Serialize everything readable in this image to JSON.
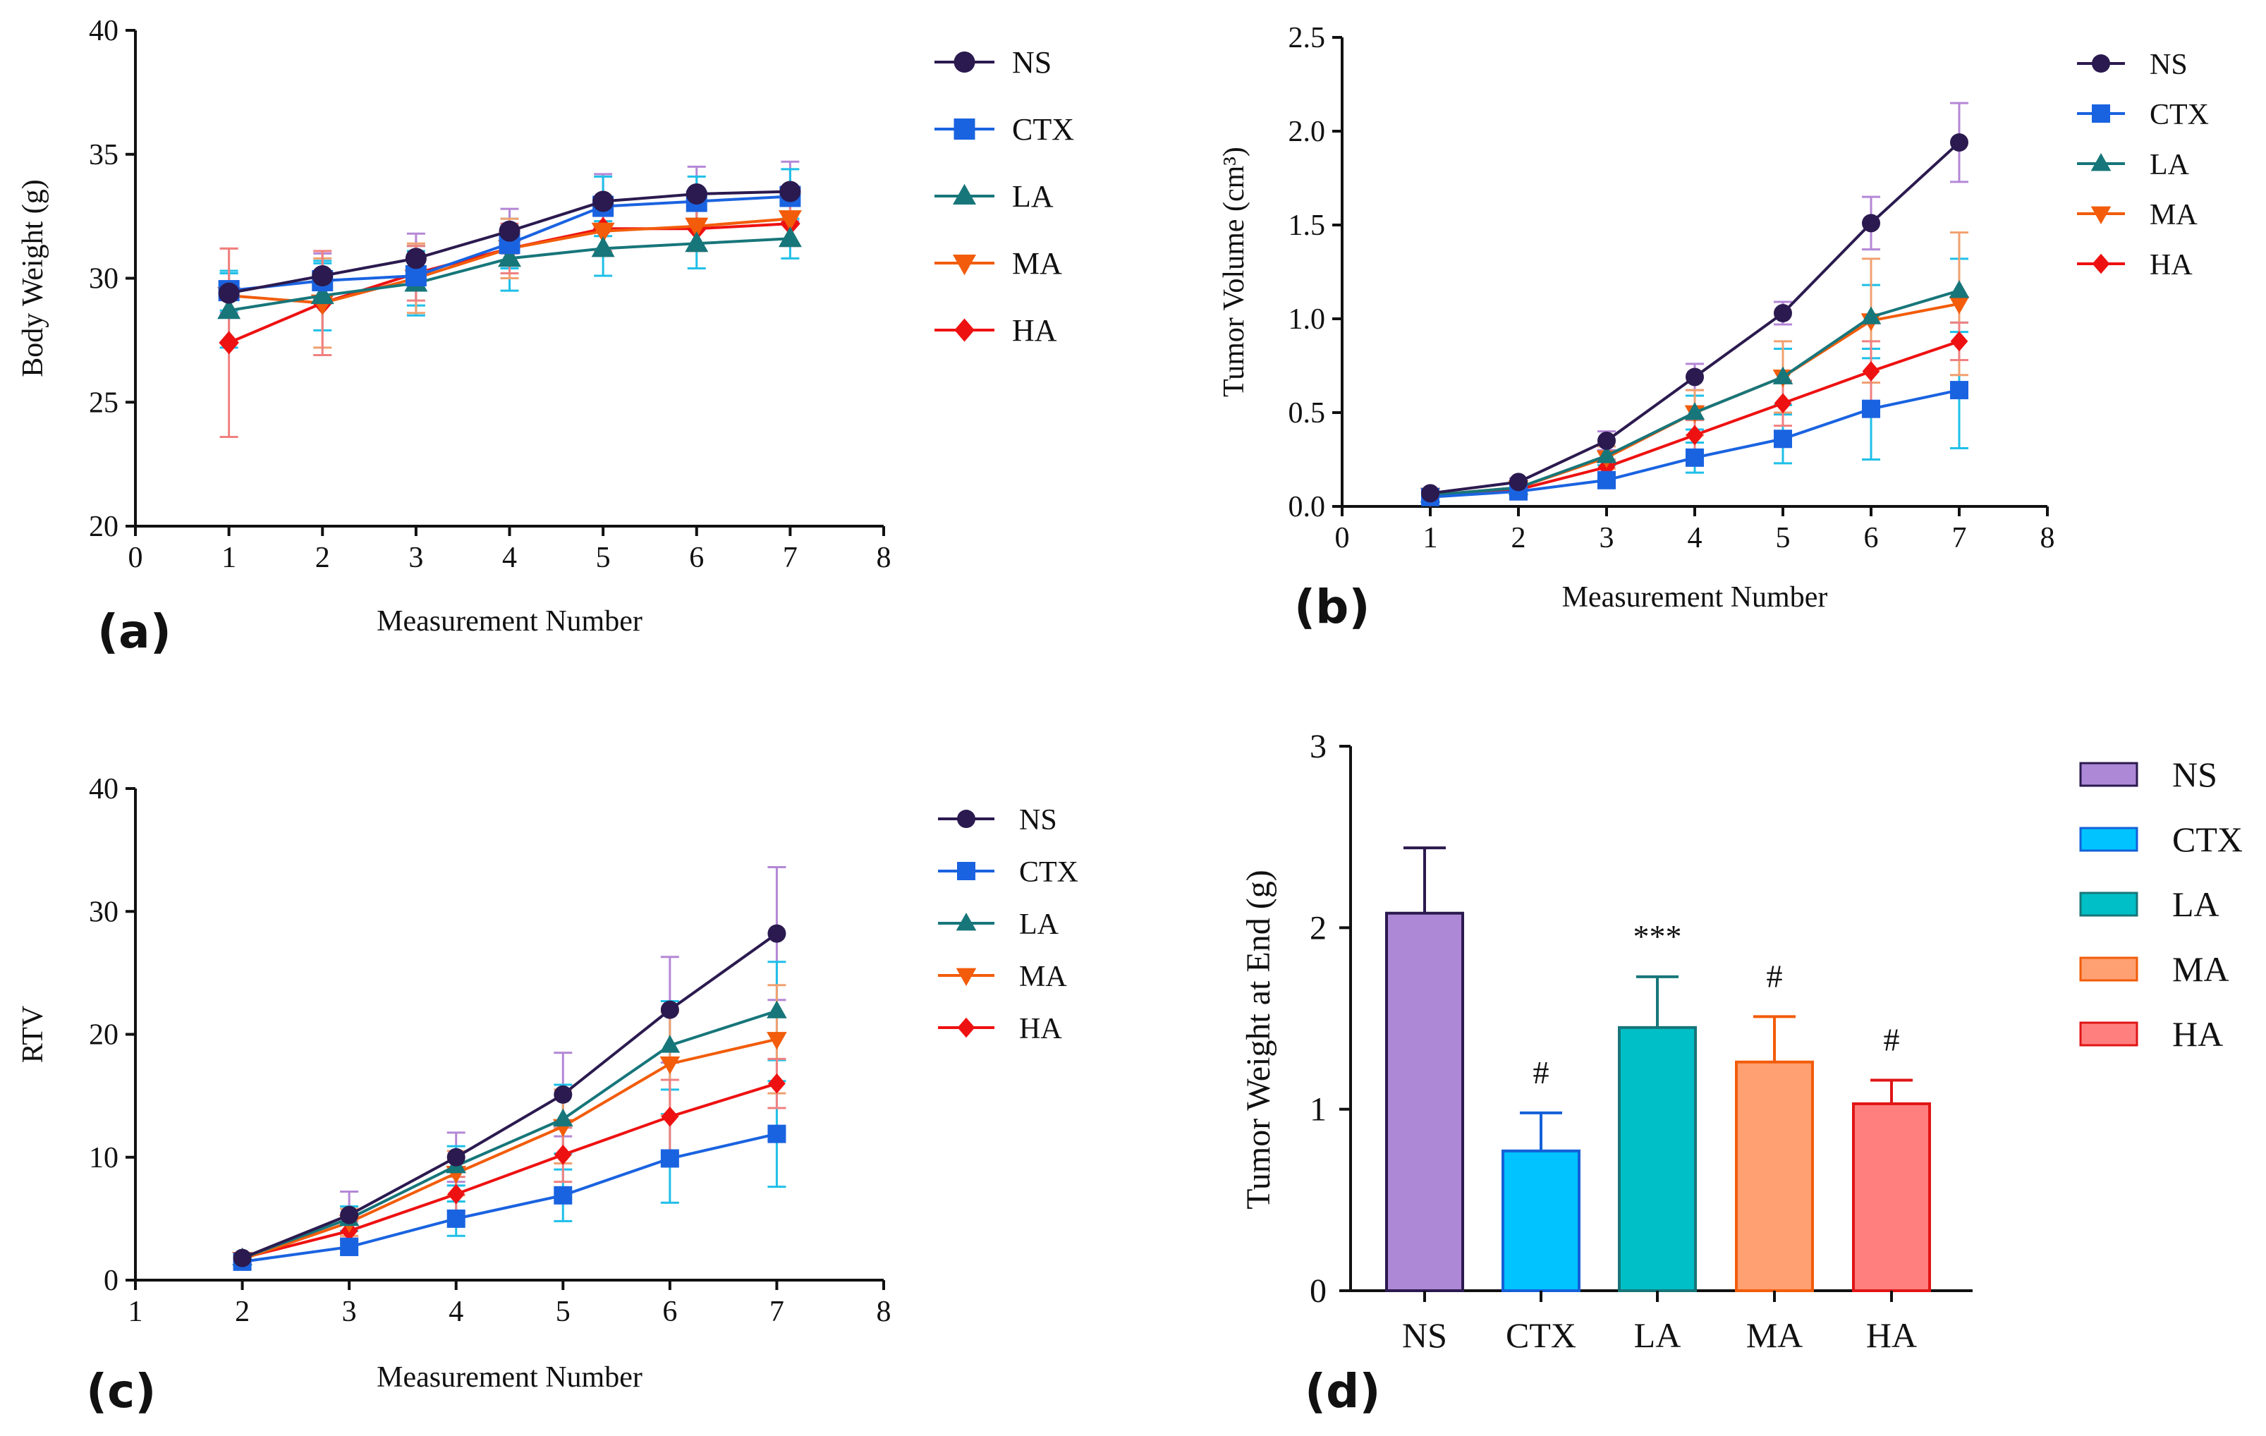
{
  "colors": {
    "NS": "#2b1a4f",
    "CTX": "#1a63e0",
    "LA": "#17767a",
    "MA": "#f25c0a",
    "HA": "#ee1111",
    "err_NS": "#b487d6",
    "err_CTX": "#1fbfe8",
    "err_LA": "#1fbfe8",
    "err_MA": "#f0a070",
    "err_HA": "#f08080",
    "bar_NS": "#ad88d6",
    "bar_CTX": "#00c3ff",
    "bar_LA": "#00bfc6",
    "bar_MA": "#ffa072",
    "bar_HA": "#ff7f7f",
    "bar_edge_NS": "#2b1a4f",
    "bar_edge_CTX": "#1560d8",
    "bar_edge_LA": "#17767a",
    "bar_edge_MA": "#f25c0a",
    "bar_edge_HA": "#e01515"
  },
  "chart_data": [
    {
      "id": "a",
      "panel_label": "(a)",
      "type": "line",
      "xlabel": "Measurement Number",
      "ylabel": "Body Weight (g)",
      "xlim": [
        0,
        8
      ],
      "ylim": [
        20,
        40
      ],
      "x_ticks": [
        "0",
        "1",
        "2",
        "3",
        "4",
        "5",
        "6",
        "7",
        "8"
      ],
      "y_ticks": [
        "20",
        "25",
        "30",
        "35",
        "40"
      ],
      "x": [
        1,
        2,
        3,
        4,
        5,
        6,
        7
      ],
      "series": [
        {
          "name": "NS",
          "marker": "circle",
          "values": [
            29.4,
            30.1,
            30.8,
            31.9,
            33.1,
            33.4,
            33.5
          ],
          "err": [
            0.8,
            0.9,
            1.0,
            0.9,
            1.1,
            1.1,
            1.2
          ]
        },
        {
          "name": "CTX",
          "marker": "square",
          "values": [
            29.5,
            29.9,
            30.1,
            31.4,
            32.9,
            33.1,
            33.3
          ],
          "err": [
            0.8,
            0.7,
            1.2,
            1.0,
            1.2,
            1.0,
            1.1
          ]
        },
        {
          "name": "LA",
          "marker": "triangle-up",
          "values": [
            28.7,
            29.3,
            29.8,
            30.8,
            31.2,
            31.4,
            31.6
          ],
          "err": [
            1.5,
            1.4,
            1.3,
            1.3,
            1.1,
            1.0,
            0.8
          ]
        },
        {
          "name": "MA",
          "marker": "triangle-down",
          "values": [
            29.3,
            29.0,
            30.0,
            31.2,
            31.9,
            32.1,
            32.4
          ],
          "err": [
            1.9,
            1.8,
            1.4,
            1.2,
            1.0,
            1.0,
            1.0
          ]
        },
        {
          "name": "HA",
          "marker": "diamond",
          "values": [
            27.4,
            29.0,
            30.2,
            31.2,
            32.0,
            32.0,
            32.2
          ],
          "err": [
            3.8,
            2.1,
            1.1,
            1.0,
            0.9,
            0.9,
            0.9
          ]
        }
      ]
    },
    {
      "id": "b",
      "panel_label": "(b)",
      "type": "line",
      "xlabel": "Measurement Number",
      "ylabel": "Tumor Volume (cm³)",
      "xlim": [
        0,
        8
      ],
      "ylim": [
        0,
        2.5
      ],
      "x_ticks": [
        "0",
        "1",
        "2",
        "3",
        "4",
        "5",
        "6",
        "7",
        "8"
      ],
      "y_ticks": [
        "0.0",
        "0.5",
        "1.0",
        "1.5",
        "2.0",
        "2.5"
      ],
      "x": [
        1,
        2,
        3,
        4,
        5,
        6,
        7
      ],
      "series": [
        {
          "name": "NS",
          "marker": "circle",
          "values": [
            0.07,
            0.13,
            0.35,
            0.69,
            1.03,
            1.51,
            1.94
          ],
          "err": [
            0.01,
            0.02,
            0.05,
            0.07,
            0.06,
            0.14,
            0.21
          ]
        },
        {
          "name": "CTX",
          "marker": "square",
          "values": [
            0.05,
            0.08,
            0.14,
            0.26,
            0.36,
            0.52,
            0.62
          ],
          "err": [
            0.01,
            0.02,
            0.04,
            0.08,
            0.13,
            0.27,
            0.31
          ]
        },
        {
          "name": "LA",
          "marker": "triangle-up",
          "values": [
            0.06,
            0.1,
            0.27,
            0.5,
            0.69,
            1.01,
            1.15
          ],
          "err": [
            0.01,
            0.02,
            0.05,
            0.09,
            0.15,
            0.17,
            0.17
          ]
        },
        {
          "name": "MA",
          "marker": "triangle-down",
          "values": [
            0.06,
            0.1,
            0.26,
            0.5,
            0.69,
            0.99,
            1.08
          ],
          "err": [
            0.01,
            0.02,
            0.06,
            0.12,
            0.19,
            0.33,
            0.38
          ]
        },
        {
          "name": "HA",
          "marker": "diamond",
          "values": [
            0.05,
            0.09,
            0.21,
            0.38,
            0.55,
            0.72,
            0.88
          ],
          "err": [
            0.01,
            0.02,
            0.04,
            0.08,
            0.12,
            0.16,
            0.1
          ]
        }
      ]
    },
    {
      "id": "c",
      "panel_label": "(c)",
      "type": "line",
      "xlabel": "Measurement Number",
      "ylabel": "RTV",
      "xlim": [
        1,
        8
      ],
      "ylim": [
        0,
        40
      ],
      "x_ticks": [
        "1",
        "2",
        "3",
        "4",
        "5",
        "6",
        "7",
        "8"
      ],
      "y_ticks": [
        "0",
        "10",
        "20",
        "30",
        "40"
      ],
      "x": [
        2,
        3,
        4,
        5,
        6,
        7
      ],
      "series": [
        {
          "name": "NS",
          "marker": "circle",
          "values": [
            1.8,
            5.3,
            10.0,
            15.1,
            22.0,
            28.2
          ],
          "err": [
            0.3,
            1.9,
            2.0,
            3.4,
            4.3,
            5.4
          ]
        },
        {
          "name": "CTX",
          "marker": "square",
          "values": [
            1.5,
            2.7,
            5.0,
            6.9,
            9.9,
            11.9
          ],
          "err": [
            0.3,
            0.6,
            1.4,
            2.1,
            3.6,
            4.3
          ]
        },
        {
          "name": "LA",
          "marker": "triangle-up",
          "values": [
            1.8,
            5.0,
            9.3,
            13.1,
            19.1,
            21.9
          ],
          "err": [
            0.3,
            1.0,
            1.6,
            2.8,
            3.6,
            4.0
          ]
        },
        {
          "name": "MA",
          "marker": "triangle-down",
          "values": [
            1.7,
            4.7,
            8.7,
            12.5,
            17.6,
            19.6
          ],
          "err": [
            0.3,
            1.1,
            1.8,
            3.0,
            4.2,
            4.4
          ]
        },
        {
          "name": "HA",
          "marker": "diamond",
          "values": [
            1.8,
            4.0,
            7.0,
            10.2,
            13.3,
            16.0
          ],
          "err": [
            0.3,
            0.8,
            1.4,
            2.2,
            3.0,
            2.0
          ]
        }
      ]
    },
    {
      "id": "d",
      "panel_label": "(d)",
      "type": "bar",
      "xlabel": "",
      "ylabel": "Tumor Weight at End (g)",
      "ylim": [
        0,
        3
      ],
      "y_ticks": [
        "0",
        "1",
        "2",
        "3"
      ],
      "categories": [
        "NS",
        "CTX",
        "LA",
        "MA",
        "HA"
      ],
      "values": [
        2.08,
        0.77,
        1.45,
        1.26,
        1.03
      ],
      "err": [
        0.36,
        0.21,
        0.28,
        0.25,
        0.13
      ],
      "annotations": [
        "",
        "#",
        "***",
        "#",
        "#"
      ]
    }
  ],
  "legend_names": [
    "NS",
    "CTX",
    "LA",
    "MA",
    "HA"
  ]
}
